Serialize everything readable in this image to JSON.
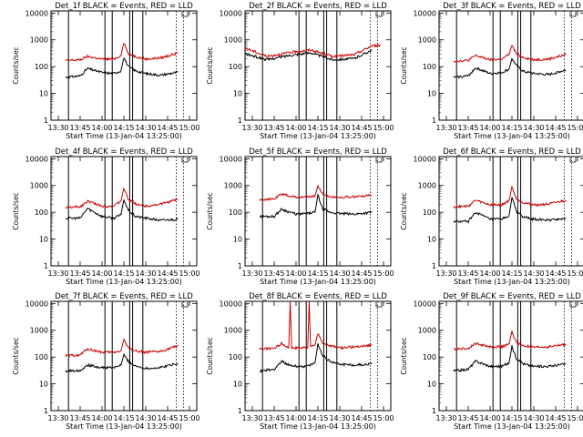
{
  "colors": {
    "events": "#000000",
    "lld": "#cc0000",
    "frame": "#000000",
    "background": "#ffffff"
  },
  "x_ticks": [
    {
      "v": 0,
      "label": "13:30"
    },
    {
      "v": 15,
      "label": "13:45"
    },
    {
      "v": 30,
      "label": "14:00"
    },
    {
      "v": 45,
      "label": "14:15"
    },
    {
      "v": 60,
      "label": "14:30"
    },
    {
      "v": 75,
      "label": "14:45"
    },
    {
      "v": 90,
      "label": "15:00"
    }
  ],
  "y_ticks": [
    {
      "v": 1,
      "label": "1"
    },
    {
      "v": 10,
      "label": "10"
    },
    {
      "v": 100,
      "label": "100"
    },
    {
      "v": 1000,
      "label": "1000"
    },
    {
      "v": 10000,
      "label": "10000"
    }
  ],
  "chart_data": [
    {
      "type": "line",
      "title": "Det_1f BLACK = Events, RED = LLD",
      "xlabel": "Start Time (13-Jan-04 13:25:00)",
      "ylabel": "Counts/sec",
      "xlim": [
        "13:25",
        "15:05"
      ],
      "ylim": [
        1,
        12000
      ],
      "yscale": "log",
      "vlines_solid": [
        "13:37",
        "14:02",
        "14:07",
        "14:19",
        "14:21",
        "14:28"
      ],
      "vlines_dotted": [
        "14:51",
        "14:56"
      ],
      "series": [
        {
          "name": "Events",
          "color": "#000000",
          "x": [
            "13:35",
            "13:45",
            "13:50",
            "14:00",
            "14:08",
            "14:13",
            "14:15",
            "14:18",
            "14:23",
            "14:30",
            "14:40",
            "14:52"
          ],
          "y": [
            40,
            45,
            85,
            60,
            55,
            70,
            220,
            100,
            70,
            55,
            48,
            62
          ]
        },
        {
          "name": "LLD",
          "color": "#cc0000",
          "x": [
            "13:35",
            "13:45",
            "13:50",
            "14:00",
            "14:08",
            "14:13",
            "14:15",
            "14:18",
            "14:23",
            "14:30",
            "14:40",
            "14:52"
          ],
          "y": [
            170,
            180,
            240,
            190,
            190,
            260,
            800,
            300,
            240,
            190,
            210,
            320
          ]
        }
      ]
    },
    {
      "type": "line",
      "title": "Det_2f BLACK = Events, RED = LLD",
      "xlabel": "Start Time (13-Jan-04 13:25:00)",
      "ylabel": "Counts/sec",
      "xlim": [
        "13:25",
        "15:05"
      ],
      "ylim": [
        1,
        12000
      ],
      "yscale": "log",
      "vlines_solid": [
        "13:37",
        "14:02",
        "14:07",
        "14:19",
        "14:21",
        "14:28"
      ],
      "vlines_dotted": [
        "14:51",
        "14:56"
      ],
      "series": [
        {
          "name": "Events",
          "color": "#000000",
          "x": [
            "13:25",
            "13:40",
            "13:55",
            "14:10",
            "14:25",
            "14:40",
            "14:52"
          ],
          "y": [
            300,
            180,
            260,
            330,
            180,
            200,
            420
          ]
        },
        {
          "name": "LLD",
          "color": "#cc0000",
          "x": [
            "13:25",
            "13:40",
            "13:55",
            "14:10",
            "14:25",
            "14:40",
            "14:52",
            "14:58"
          ],
          "y": [
            500,
            240,
            330,
            420,
            240,
            280,
            600,
            620
          ]
        }
      ]
    },
    {
      "type": "line",
      "title": "Det_3f BLACK = Events, RED = LLD",
      "xlabel": "Start Time (13-Jan-04 13:25:00)",
      "ylabel": "Counts/sec",
      "xlim": [
        "13:25",
        "15:05"
      ],
      "ylim": [
        1,
        12000
      ],
      "yscale": "log",
      "vlines_solid": [
        "13:37",
        "14:02",
        "14:07",
        "14:19",
        "14:21",
        "14:28"
      ],
      "vlines_dotted": [
        "14:51",
        "14:56"
      ],
      "series": [
        {
          "name": "Events",
          "color": "#000000",
          "x": [
            "13:35",
            "13:45",
            "13:50",
            "14:00",
            "14:08",
            "14:13",
            "14:15",
            "14:18",
            "14:23",
            "14:30",
            "14:40",
            "14:52"
          ],
          "y": [
            40,
            45,
            90,
            55,
            60,
            80,
            200,
            110,
            65,
            55,
            50,
            75
          ]
        },
        {
          "name": "LLD",
          "color": "#cc0000",
          "x": [
            "13:35",
            "13:45",
            "13:50",
            "14:00",
            "14:08",
            "14:13",
            "14:15",
            "14:18",
            "14:23",
            "14:30",
            "14:40",
            "14:52"
          ],
          "y": [
            160,
            170,
            260,
            180,
            190,
            280,
            650,
            300,
            220,
            180,
            190,
            280
          ]
        }
      ]
    },
    {
      "type": "line",
      "title": "Det_4f BLACK = Events, RED = LLD",
      "xlabel": "Start Time (13-Jan-04 13:25:00)",
      "ylabel": "Counts/sec",
      "xlim": [
        "13:25",
        "15:05"
      ],
      "ylim": [
        1,
        12000
      ],
      "yscale": "log",
      "vlines_solid": [
        "13:37",
        "14:02",
        "14:07",
        "14:19",
        "14:21",
        "14:28"
      ],
      "vlines_dotted": [
        "14:51",
        "14:56"
      ],
      "series": [
        {
          "name": "Events",
          "color": "#000000",
          "x": [
            "13:35",
            "13:45",
            "13:50",
            "14:00",
            "14:08",
            "14:13",
            "14:15",
            "14:18",
            "14:23",
            "14:30",
            "14:40",
            "14:52"
          ],
          "y": [
            60,
            60,
            140,
            70,
            60,
            80,
            300,
            120,
            70,
            60,
            50,
            55
          ]
        },
        {
          "name": "LLD",
          "color": "#cc0000",
          "x": [
            "13:35",
            "13:45",
            "13:50",
            "14:00",
            "14:08",
            "14:13",
            "14:15",
            "14:18",
            "14:23",
            "14:30",
            "14:40",
            "14:52"
          ],
          "y": [
            150,
            160,
            260,
            170,
            170,
            260,
            800,
            300,
            210,
            170,
            200,
            300
          ]
        }
      ]
    },
    {
      "type": "line",
      "title": "Det_5f BLACK = Events, RED = LLD",
      "xlabel": "Start Time (13-Jan-04 13:25:00)",
      "ylabel": "Counts/sec",
      "xlim": [
        "13:25",
        "15:05"
      ],
      "ylim": [
        1,
        12000
      ],
      "yscale": "log",
      "vlines_solid": [
        "13:37",
        "14:02",
        "14:07",
        "14:19",
        "14:21",
        "14:28"
      ],
      "vlines_dotted": [
        "14:51",
        "14:56"
      ],
      "series": [
        {
          "name": "Events",
          "color": "#000000",
          "x": [
            "13:35",
            "13:45",
            "13:50",
            "14:00",
            "14:08",
            "14:13",
            "14:15",
            "14:18",
            "14:23",
            "14:30",
            "14:40",
            "14:52"
          ],
          "y": [
            70,
            70,
            130,
            85,
            90,
            100,
            450,
            140,
            100,
            90,
            85,
            100
          ]
        },
        {
          "name": "LLD",
          "color": "#cc0000",
          "x": [
            "13:35",
            "13:45",
            "13:50",
            "14:00",
            "14:08",
            "14:13",
            "14:15",
            "14:18",
            "14:23",
            "14:30",
            "14:40",
            "14:52"
          ],
          "y": [
            300,
            310,
            480,
            360,
            380,
            400,
            1000,
            500,
            380,
            360,
            380,
            430
          ]
        }
      ]
    },
    {
      "type": "line",
      "title": "Det_6f BLACK = Events, RED = LLD",
      "xlabel": "Start Time (13-Jan-04 13:25:00)",
      "ylabel": "Counts/sec",
      "xlim": [
        "13:25",
        "15:05"
      ],
      "ylim": [
        1,
        12000
      ],
      "yscale": "log",
      "vlines_solid": [
        "13:37",
        "14:02",
        "14:07",
        "14:19",
        "14:21",
        "14:28"
      ],
      "vlines_dotted": [
        "14:51",
        "14:56"
      ],
      "series": [
        {
          "name": "Events",
          "color": "#000000",
          "x": [
            "13:35",
            "13:45",
            "13:50",
            "14:00",
            "14:08",
            "14:13",
            "14:15",
            "14:18",
            "14:23",
            "14:30",
            "14:40",
            "14:52"
          ],
          "y": [
            45,
            45,
            100,
            55,
            55,
            75,
            350,
            110,
            65,
            55,
            50,
            60
          ]
        },
        {
          "name": "LLD",
          "color": "#cc0000",
          "x": [
            "13:35",
            "13:45",
            "13:50",
            "14:00",
            "14:08",
            "14:13",
            "14:15",
            "14:18",
            "14:23",
            "14:30",
            "14:40",
            "14:52"
          ],
          "y": [
            160,
            170,
            280,
            190,
            190,
            270,
            900,
            320,
            230,
            190,
            200,
            280
          ]
        }
      ]
    },
    {
      "type": "line",
      "title": "Det_7f BLACK = Events, RED = LLD",
      "xlabel": "Start Time (13-Jan-04 13:25:00)",
      "ylabel": "Counts/sec",
      "xlim": [
        "13:25",
        "15:05"
      ],
      "ylim": [
        1,
        12000
      ],
      "yscale": "log",
      "vlines_solid": [
        "13:37",
        "14:02",
        "14:07",
        "14:19",
        "14:21",
        "14:28"
      ],
      "vlines_dotted": [
        "14:51",
        "14:56"
      ],
      "series": [
        {
          "name": "Events",
          "color": "#000000",
          "x": [
            "13:35",
            "13:45",
            "13:50",
            "14:00",
            "14:08",
            "14:13",
            "14:15",
            "14:18",
            "14:23",
            "14:30",
            "14:40",
            "14:52"
          ],
          "y": [
            30,
            32,
            50,
            40,
            40,
            50,
            120,
            70,
            45,
            38,
            40,
            60
          ]
        },
        {
          "name": "LLD",
          "color": "#cc0000",
          "x": [
            "13:35",
            "13:45",
            "13:50",
            "14:00",
            "14:08",
            "14:13",
            "14:15",
            "14:18",
            "14:23",
            "14:30",
            "14:40",
            "14:52"
          ],
          "y": [
            110,
            120,
            200,
            150,
            150,
            170,
            450,
            220,
            170,
            150,
            160,
            260
          ]
        }
      ]
    },
    {
      "type": "line",
      "title": "Det_8f BLACK = Events, RED = LLD",
      "xlabel": "Start Time (13-Jan-04 13:25:00)",
      "ylabel": "Counts/sec",
      "xlim": [
        "13:25",
        "15:05"
      ],
      "ylim": [
        1,
        12000
      ],
      "yscale": "log",
      "vlines_solid": [
        "13:37",
        "14:02",
        "14:07",
        "14:19",
        "14:21",
        "14:28"
      ],
      "vlines_dotted": [
        "14:51",
        "14:56"
      ],
      "series": [
        {
          "name": "Events",
          "color": "#000000",
          "x": [
            "13:35",
            "13:45",
            "13:50",
            "13:55",
            "14:00",
            "14:08",
            "14:13",
            "14:15",
            "14:18",
            "14:23",
            "14:30",
            "14:40",
            "14:52"
          ],
          "y": [
            30,
            35,
            70,
            50,
            45,
            45,
            60,
            300,
            120,
            70,
            55,
            50,
            55
          ]
        },
        {
          "name": "LLD",
          "color": "#cc0000",
          "x": [
            "13:35",
            "13:45",
            "13:50",
            "13:55",
            "13:56",
            "13:57",
            "14:00",
            "14:08",
            "14:09",
            "14:10",
            "14:13",
            "14:15",
            "14:18",
            "14:23",
            "14:30",
            "14:40",
            "14:52"
          ],
          "y": [
            200,
            210,
            320,
            230,
            12000,
            230,
            220,
            220,
            12000,
            230,
            280,
            800,
            350,
            260,
            220,
            240,
            280
          ]
        }
      ]
    },
    {
      "type": "line",
      "title": "Det_9f BLACK = Events, RED = LLD",
      "xlabel": "Start Time (13-Jan-04 13:25:00)",
      "ylabel": "Counts/sec",
      "xlim": [
        "13:25",
        "15:05"
      ],
      "ylim": [
        1,
        12000
      ],
      "yscale": "log",
      "vlines_solid": [
        "13:37",
        "14:02",
        "14:07",
        "14:19",
        "14:21",
        "14:28"
      ],
      "vlines_dotted": [
        "14:51",
        "14:56"
      ],
      "series": [
        {
          "name": "Events",
          "color": "#000000",
          "x": [
            "13:35",
            "13:45",
            "13:50",
            "14:00",
            "14:08",
            "14:13",
            "14:15",
            "14:18",
            "14:23",
            "14:30",
            "14:40",
            "14:52"
          ],
          "y": [
            30,
            35,
            70,
            45,
            45,
            60,
            250,
            90,
            55,
            45,
            45,
            55
          ]
        },
        {
          "name": "LLD",
          "color": "#cc0000",
          "x": [
            "13:35",
            "13:45",
            "13:50",
            "14:00",
            "14:08",
            "14:13",
            "14:15",
            "14:18",
            "14:23",
            "14:30",
            "14:40",
            "14:52"
          ],
          "y": [
            200,
            210,
            320,
            240,
            240,
            300,
            900,
            350,
            260,
            230,
            240,
            300
          ]
        }
      ]
    }
  ]
}
